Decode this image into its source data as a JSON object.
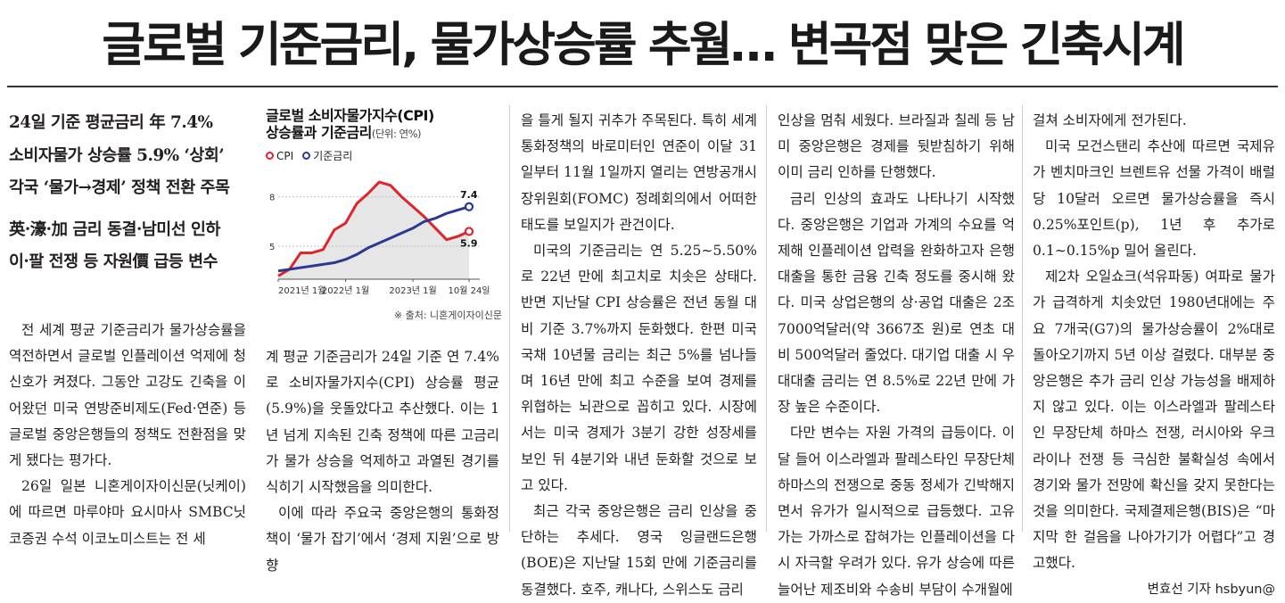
{
  "headline": "글로벌 기준금리, 물가상승률 추월… 변곡점 맞은 긴축시계",
  "subheads": {
    "block1": [
      "24일 기준 평균금리 年 7.4%",
      "소비자물가 상승률 5.9% ‘상회’",
      "각국 ‘물가→경제’ 정책 전환 주목"
    ],
    "block2": [
      "英·濠·加 금리 동결·남미선 인하",
      "이·팔 전쟁 등 자원價 급등 변수"
    ]
  },
  "col1_paragraphs": [
    "전 세계 평균 기준금리가 물가상승률을 역전하면서 글로벌 인플레이션 억제에 청신호가 켜졌다. 그동안 고강도 긴축을 이어왔던 미국 연방준비제도(Fed·연준) 등 글로벌 중앙은행들의 정책도 전환점을 맞게 됐다는 평가다.",
    "26일 일본 니혼게이자이신문(닛케이)에 따르면 마루야마 요시마사 SMBC닛코증권 수석 이코노미스트는 전 세"
  ],
  "col2_paragraphs": [
    "계 평균 기준금리가 24일 기준 연 7.4%로 소비자물가지수(CPI) 상승률 평균(5.9%)을 웃돌았다고 추산했다. 이는 1년 넘게 지속된 긴축 정책에 따른 고금리가 물가 상승을 억제하고 과열된 경기를 식히기 시작했음을 의미한다.",
    "이에 따라 주요국 중앙은행의 통화정책이 ‘물가 잡기’에서 ‘경제 지원’으로 방향"
  ],
  "col3_paragraphs": [
    "을 틀게 될지 귀추가 주목된다. 특히 세계 통화정책의 바로미터인 연준이 이달 31일부터 11월 1일까지 열리는 연방공개시장위원회(FOMC) 정례회의에서 어떠한 태도를 보일지가 관건이다.",
    "미국의 기준금리는 연 5.25∼5.50%로 22년 만에 최고치로 치솟은 상태다. 반면 지난달 CPI 상승률은 전년 동월 대비 기준 3.7%까지 둔화했다. 한편 미국 국채 10년물 금리는 최근 5%를 넘나들며 16년 만에 최고 수준을 보여 경제를 위협하는 뇌관으로 꼽히고 있다. 시장에서는 미국 경제가 3분기 강한 성장세를 보인 뒤 4분기와 내년 둔화할 것으로 보고 있다.",
    "최근 각국 중앙은행은 금리 인상을 중단하는 추세다. 영국 잉글랜드은행(BOE)은 지난달 15회 만에 기준금리를 동결했다. 호주, 캐나다, 스위스도 금리"
  ],
  "col4_paragraphs": [
    "인상을 멈춰 세웠다. 브라질과 칠레 등 남미 중앙은행은 경제를 뒷받침하기 위해 이미 금리 인하를 단행했다.",
    "금리 인상의 효과도 나타나기 시작했다. 중앙은행은 기업과 가계의 수요를 억제해 인플레이션 압력을 완화하고자 은행 대출을 통한 금융 긴축 정도를 중시해 왔다. 미국 상업은행의 상·공업 대출은 2조7000억달러(약 3667조 원)로 연초 대비 500억달러 줄었다. 대기업 대출 시 우대대출 금리는 연 8.5%로 22년 만에 가장 높은 수준이다.",
    "다만 변수는 자원 가격의 급등이다. 이달 들어 이스라엘과 팔레스타인 무장단체 하마스의 전쟁으로 중동 정세가 긴박해지면서 유가가 일시적으로 급등했다. 고유가는 가까스로 잡혀가는 인플레이션을 다시 자극할 우려가 있다. 유가 상승에 따른 늘어난 제조비와 수송비 부담이 수개월에"
  ],
  "col5_paragraphs": [
    "걸쳐 소비자에게 전가된다.",
    "미국 모건스탠리 추산에 따르면 국제유가 벤치마크인 브렌트유 선물 가격이 배럴당 10달러 오르면 물가상승률을 즉시 0.25%포인트(p), 1년 후 추가로 0.1∼0.15%p 밀어 올린다.",
    "제2차 오일쇼크(석유파동) 여파로 물가가 급격하게 치솟았던 1980년대에는 주요 7개국(G7)의 물가상승률이 2%대로 돌아오기까지 5년 이상 걸렸다. 대부분 중앙은행은 추가 금리 인상 가능성을 배제하지 않고 있다. 이는 이스라엘과 팔레스타인 무장단체 하마스 전쟁, 러시아와 우크라이나 전쟁 등 극심한 불확실성 속에서 경기와 물가 전망에 확신을 갖지 못한다는 것을 의미한다. 국제결제은행(BIS)은 “마지막 한 걸음을 나아가기가 어렵다”고 경고했다."
  ],
  "byline": "변효선 기자 hsbyun@",
  "chart": {
    "title_line1": "글로벌 소비자물가지수(CPI)",
    "title_line2": "상승률과 기준금리",
    "unit": "(단위: 연%)",
    "source": "※ 출처: 니혼게이자이신문",
    "colors": {
      "cpi": "#e0242b",
      "rate": "#2b3990"
    }
  },
  "chart_data": {
    "type": "line",
    "x": [
      "2021-01",
      "2021-03",
      "2021-05",
      "2021-07",
      "2021-09",
      "2021-11",
      "2022-01",
      "2022-03",
      "2022-05",
      "2022-07",
      "2022-09",
      "2022-11",
      "2023-01",
      "2023-03",
      "2023-05",
      "2023-07",
      "2023-09",
      "2023-10-24"
    ],
    "xticks": [
      "2021년 1월",
      "2022년 1월",
      "2023년 1월",
      "10월 24일"
    ],
    "yticks": [
      "8",
      "5"
    ],
    "ylim": [
      3,
      9.5
    ],
    "series": [
      {
        "name": "CPI",
        "values": [
          3.2,
          3.6,
          4.6,
          4.6,
          4.8,
          6.0,
          6.4,
          7.6,
          8.2,
          8.9,
          8.7,
          8.0,
          7.4,
          6.8,
          6.1,
          5.4,
          5.6,
          5.9
        ]
      },
      {
        "name": "기준금리",
        "values": [
          3.5,
          3.6,
          3.7,
          3.8,
          3.9,
          4.0,
          4.2,
          4.5,
          4.9,
          5.2,
          5.5,
          5.8,
          6.1,
          6.5,
          6.7,
          7.0,
          7.2,
          7.4
        ]
      }
    ],
    "end_labels": {
      "CPI": "5.9",
      "기준금리": "7.4"
    },
    "grid": true
  }
}
